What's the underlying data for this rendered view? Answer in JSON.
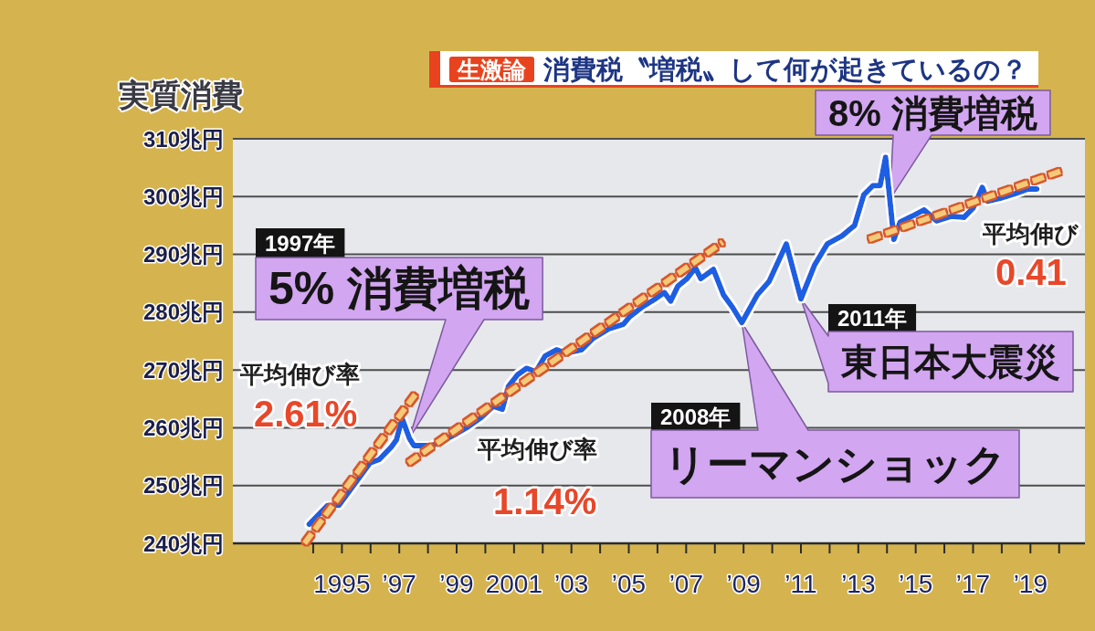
{
  "chart_data": {
    "type": "line",
    "title": "消費税〝増税〟して何が起きているの？",
    "subtitle": "生激論",
    "ylabel": "実質消費",
    "xlim": [
      1991.2,
      2020.9
    ],
    "xticks": [
      {
        "value": 1994,
        "label": null
      },
      1995,
      {
        "value": 1996,
        "label": null
      },
      {
        "value": 1997,
        "label": "’97"
      },
      {
        "value": 1998,
        "label": null
      },
      {
        "value": 1999,
        "label": "’99"
      },
      {
        "value": 2000,
        "label": null
      },
      2001,
      {
        "value": 2002,
        "label": null
      },
      {
        "value": 2003,
        "label": "’03"
      },
      {
        "value": 2004,
        "label": null
      },
      {
        "value": 2005,
        "label": "’05"
      },
      {
        "value": 2006,
        "label": null
      },
      {
        "value": 2007,
        "label": "’07"
      },
      {
        "value": 2008,
        "label": null
      },
      {
        "value": 2009,
        "label": "’09"
      },
      {
        "value": 2010,
        "label": null
      },
      {
        "value": 2011,
        "label": "’11"
      },
      {
        "value": 2012,
        "label": null
      },
      {
        "value": 2013,
        "label": "’13"
      },
      {
        "value": 2014,
        "label": null
      },
      {
        "value": 2015,
        "label": "’15"
      },
      {
        "value": 2016,
        "label": null
      },
      {
        "value": 2017,
        "label": "’17"
      },
      {
        "value": 2018,
        "label": null
      },
      {
        "value": 2019,
        "label": "’19"
      },
      {
        "value": 2020,
        "label": null
      }
    ],
    "ylim": [
      240,
      310
    ],
    "yticks": [
      {
        "value": 240,
        "label": "240兆円"
      },
      {
        "value": 250,
        "label": "250兆円"
      },
      {
        "value": 260,
        "label": "260兆円"
      },
      {
        "value": 270,
        "label": "270兆円"
      },
      {
        "value": 280,
        "label": "280兆円"
      },
      {
        "value": 290,
        "label": "290兆円"
      },
      {
        "value": 300,
        "label": "300兆円"
      },
      {
        "value": 310,
        "label": "310兆円"
      }
    ],
    "grid": "y",
    "series": [
      {
        "color": "#1f5fe3",
        "line_style": "solid",
        "x": [
          1993.86,
          1994.49,
          1994.9,
          1995.98,
          1996.3,
          1996.71,
          1996.9,
          1997.1,
          1997.35,
          1997.51,
          1998.14,
          1998.59,
          1999.0,
          1999.41,
          1999.86,
          2000.27,
          2000.59,
          2000.81,
          2001.13,
          2001.44,
          2001.76,
          2002.08,
          2002.49,
          2002.81,
          2003.35,
          2003.76,
          2004.3,
          2004.81,
          2005.03,
          2005.44,
          2005.89,
          2006.24,
          2006.46,
          2006.71,
          2007.03,
          2007.32,
          2007.51,
          2007.95,
          2008.3,
          2008.62,
          2008.94,
          2009.48,
          2009.89,
          2010.49,
          2011.0,
          2011.48,
          2011.92,
          2012.43,
          2012.87,
          2013.19,
          2013.51,
          2013.76,
          2013.95,
          2014.24,
          2014.46,
          2014.87,
          2015.29,
          2015.73,
          2016.24,
          2016.68,
          2017.0,
          2017.32,
          2017.51,
          2017.95,
          2018.46,
          2018.9,
          2019.22
        ],
        "values": [
          243.3,
          246.5,
          246.6,
          253.9,
          254.5,
          256.6,
          257.9,
          261.6,
          258.2,
          256.9,
          256.9,
          257.9,
          259.0,
          260.2,
          261.8,
          263.7,
          263.2,
          267.2,
          269.2,
          270.3,
          269.7,
          272.4,
          273.5,
          272.9,
          273.5,
          275.5,
          277.1,
          277.9,
          279.2,
          280.8,
          282.2,
          283.4,
          281.9,
          284.5,
          285.8,
          287.7,
          285.8,
          287.4,
          283.0,
          280.8,
          278.2,
          283.0,
          285.3,
          291.8,
          282.3,
          288.2,
          291.8,
          293.2,
          295.0,
          300.3,
          301.9,
          301.9,
          306.8,
          292.6,
          295.6,
          296.6,
          297.7,
          295.8,
          296.6,
          296.4,
          298.0,
          301.6,
          299.2,
          299.7,
          300.5,
          301.3,
          301.3
        ]
      },
      {
        "type": "line",
        "color": "#f4c978",
        "line_style": "dashed",
        "x": [
          1993.7,
          1997.67
        ],
        "values": [
          240,
          266.5
        ]
      },
      {
        "type": "line",
        "color": "#f4c978",
        "line_style": "dashed",
        "x": [
          1997.32,
          2008.27
        ],
        "values": [
          253.9,
          292.1
        ]
      },
      {
        "type": "line",
        "color": "#f4c978",
        "line_style": "dashed",
        "x": [
          2013.38,
          2020.11
        ],
        "values": [
          292.6,
          304.5
        ]
      }
    ],
    "annotations": [
      "1997年",
      {
        "text": "5% 消費増税",
        "x": 1997.35,
        "y": 258.2
      },
      "平均伸び率",
      "2.61%",
      "平均伸び率",
      "1.14%",
      "2008年",
      {
        "text": "リーマンショック",
        "x": 2008.94,
        "y": 278.2
      },
      "2011年",
      {
        "text": "東日本大震災",
        "x": 2011.0,
        "y": 282.3
      },
      {
        "text": "8% 消費増税",
        "x": 2014.1,
        "y": 299.5
      },
      "平均伸び",
      "0.41"
    ]
  }
}
